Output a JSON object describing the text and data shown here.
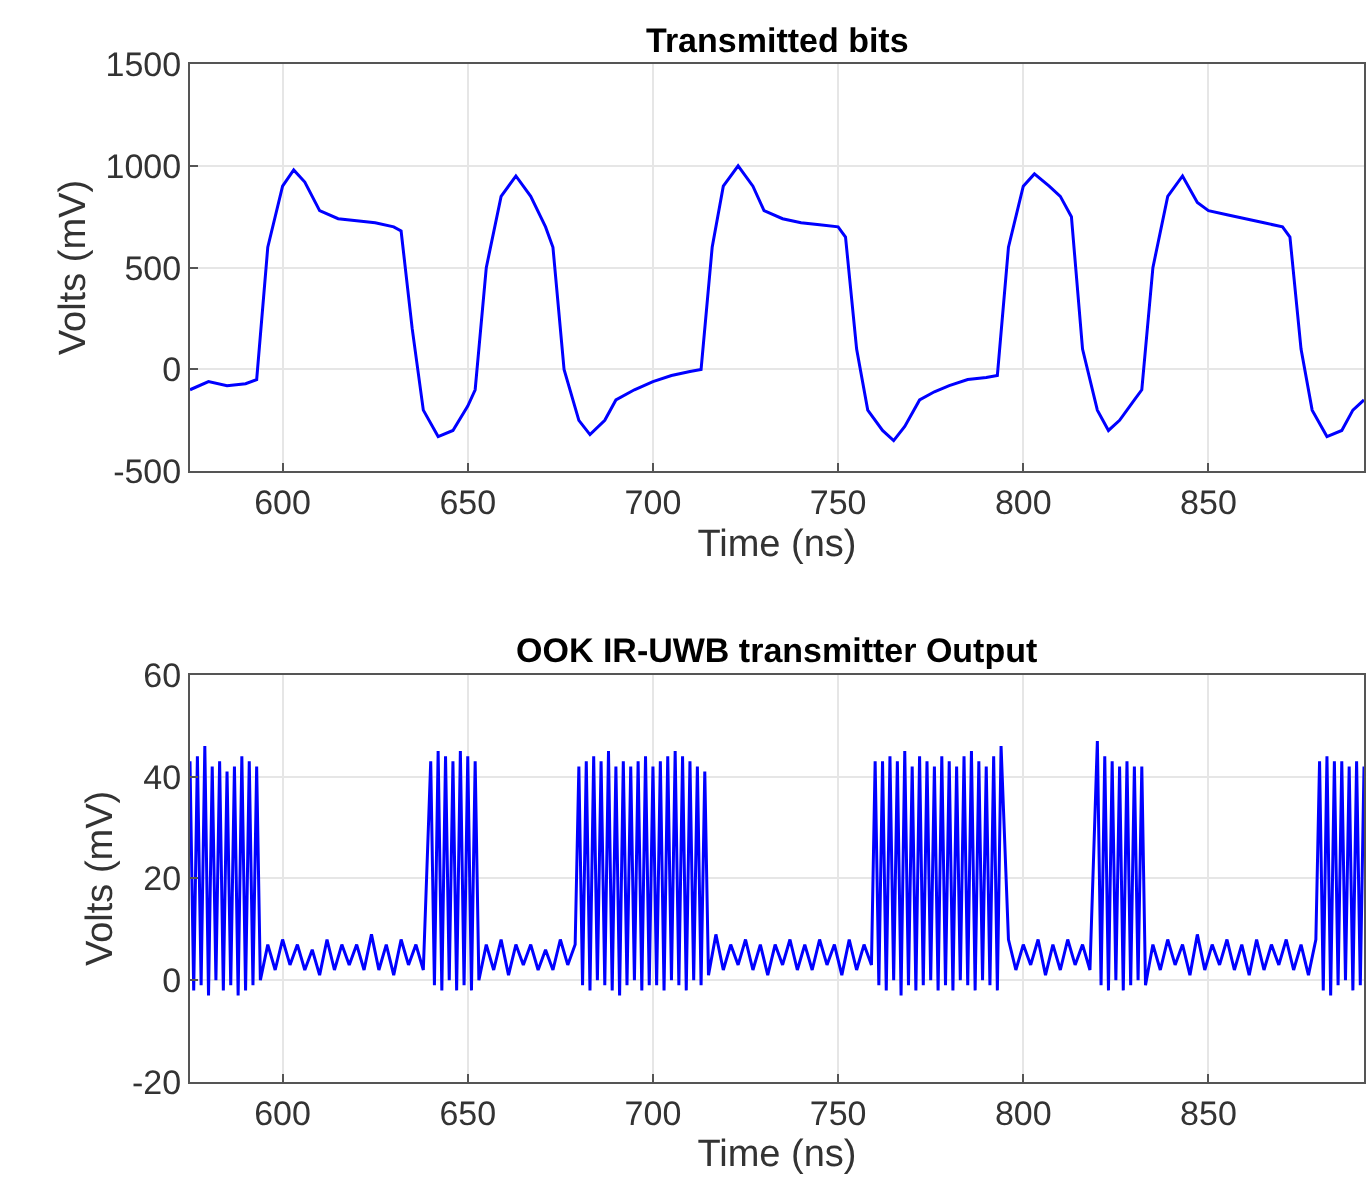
{
  "chart_data": [
    {
      "type": "line",
      "title": "Transmitted bits",
      "xlabel": "Time (ns)",
      "ylabel": "Volts (mV)",
      "xlim": [
        575,
        892
      ],
      "ylim": [
        -500,
        1500
      ],
      "xticks": [
        600,
        650,
        700,
        750,
        800,
        850
      ],
      "yticks": [
        -500,
        0,
        500,
        1000,
        1500
      ],
      "grid": true,
      "series": [
        {
          "color": "#0000ff",
          "x": [
            575,
            580,
            585,
            590,
            593,
            596,
            600,
            603,
            606,
            610,
            615,
            620,
            625,
            630,
            632,
            635,
            638,
            642,
            646,
            650,
            652,
            655,
            659,
            663,
            667,
            671,
            673,
            676,
            680,
            683,
            687,
            690,
            695,
            700,
            705,
            710,
            713,
            716,
            719,
            723,
            727,
            730,
            735,
            740,
            745,
            750,
            752,
            755,
            758,
            762,
            765,
            768,
            772,
            776,
            780,
            785,
            790,
            793,
            796,
            800,
            803,
            807,
            810,
            813,
            816,
            820,
            823,
            826,
            830,
            832,
            835,
            839,
            843,
            847,
            850,
            855,
            860,
            865,
            870,
            872,
            875,
            878,
            882,
            886,
            889,
            892
          ],
          "values": [
            -100,
            -60,
            -80,
            -70,
            -50,
            600,
            900,
            980,
            920,
            780,
            740,
            730,
            720,
            700,
            680,
            200,
            -200,
            -330,
            -300,
            -180,
            -100,
            500,
            850,
            950,
            850,
            700,
            600,
            0,
            -250,
            -320,
            -250,
            -150,
            -100,
            -60,
            -30,
            -10,
            0,
            600,
            900,
            1000,
            900,
            780,
            740,
            720,
            710,
            700,
            650,
            100,
            -200,
            -300,
            -350,
            -280,
            -150,
            -110,
            -80,
            -50,
            -40,
            -30,
            600,
            900,
            960,
            900,
            850,
            750,
            100,
            -200,
            -300,
            -250,
            -150,
            -100,
            500,
            850,
            950,
            820,
            780,
            760,
            740,
            720,
            700,
            650,
            100,
            -200,
            -330,
            -300,
            -200,
            -150
          ]
        }
      ]
    },
    {
      "type": "line",
      "title": "OOK IR-UWB transmitter Output",
      "xlabel": "Time (ns)",
      "ylabel": "Volts (mV)",
      "xlim": [
        575,
        892
      ],
      "ylim": [
        -20,
        60
      ],
      "xticks": [
        600,
        650,
        700,
        750,
        800,
        850
      ],
      "yticks": [
        -20,
        0,
        20,
        40,
        60
      ],
      "grid": true,
      "series": [
        {
          "color": "#0000ff",
          "x": [
            575,
            576,
            577,
            578,
            579,
            580,
            581,
            582,
            583,
            584,
            585,
            586,
            587,
            588,
            589,
            590,
            591,
            592,
            593,
            594,
            596,
            598,
            600,
            602,
            604,
            606,
            608,
            610,
            612,
            614,
            616,
            618,
            620,
            622,
            624,
            626,
            628,
            630,
            632,
            634,
            636,
            638,
            640,
            641,
            642,
            643,
            644,
            645,
            646,
            647,
            648,
            649,
            650,
            651,
            652,
            653,
            655,
            657,
            659,
            661,
            663,
            665,
            667,
            669,
            671,
            673,
            675,
            677,
            679,
            680,
            681,
            682,
            683,
            684,
            685,
            686,
            687,
            688,
            689,
            690,
            691,
            692,
            693,
            694,
            695,
            696,
            697,
            698,
            699,
            700,
            701,
            702,
            703,
            704,
            705,
            706,
            707,
            708,
            709,
            710,
            711,
            712,
            713,
            714,
            715,
            717,
            719,
            721,
            723,
            725,
            727,
            729,
            731,
            733,
            735,
            737,
            739,
            741,
            743,
            745,
            747,
            749,
            751,
            753,
            755,
            757,
            759,
            760,
            761,
            762,
            763,
            764,
            765,
            766,
            767,
            768,
            769,
            770,
            771,
            772,
            773,
            774,
            775,
            776,
            777,
            778,
            779,
            780,
            781,
            782,
            783,
            784,
            785,
            786,
            787,
            788,
            789,
            790,
            791,
            792,
            793,
            794,
            796,
            798,
            800,
            802,
            804,
            806,
            808,
            810,
            812,
            814,
            816,
            818,
            820,
            821,
            822,
            823,
            824,
            825,
            826,
            827,
            828,
            829,
            830,
            831,
            832,
            833,
            835,
            837,
            839,
            841,
            843,
            845,
            847,
            849,
            851,
            853,
            855,
            857,
            859,
            861,
            863,
            865,
            867,
            869,
            871,
            873,
            875,
            877,
            879,
            880,
            881,
            882,
            883,
            884,
            885,
            886,
            887,
            888,
            889,
            890,
            891,
            892
          ],
          "values": [
            43,
            -2,
            44,
            -1,
            46,
            -3,
            42,
            0,
            43,
            -2,
            41,
            -1,
            42,
            -3,
            44,
            -2,
            43,
            -1,
            42,
            0,
            7,
            2,
            8,
            3,
            7,
            2,
            6,
            1,
            8,
            2,
            7,
            3,
            7,
            2,
            9,
            2,
            7,
            1,
            8,
            3,
            7,
            2,
            43,
            -1,
            45,
            -2,
            44,
            0,
            43,
            -2,
            45,
            -1,
            44,
            -2,
            43,
            0,
            7,
            2,
            8,
            1,
            7,
            3,
            7,
            2,
            6,
            2,
            8,
            3,
            7,
            42,
            -1,
            43,
            -2,
            44,
            0,
            43,
            -1,
            45,
            -2,
            42,
            -3,
            43,
            -1,
            42,
            0,
            43,
            -2,
            44,
            -1,
            42,
            -1,
            43,
            -2,
            44,
            0,
            45,
            -1,
            44,
            -2,
            43,
            0,
            42,
            -1,
            41,
            1,
            9,
            2,
            7,
            3,
            8,
            2,
            7,
            1,
            7,
            3,
            8,
            2,
            7,
            2,
            8,
            3,
            7,
            1,
            8,
            2,
            7,
            3,
            43,
            -1,
            43,
            -2,
            44,
            0,
            43,
            -3,
            45,
            -1,
            42,
            -2,
            44,
            -1,
            43,
            0,
            42,
            -2,
            44,
            -1,
            43,
            -2,
            42,
            0,
            44,
            -1,
            45,
            -2,
            43,
            0,
            42,
            -1,
            44,
            -2,
            46,
            8,
            2,
            7,
            3,
            8,
            1,
            7,
            2,
            8,
            3,
            7,
            2,
            47,
            -1,
            44,
            -2,
            43,
            0,
            42,
            -2,
            43,
            -1,
            42,
            0,
            42,
            -1,
            7,
            2,
            8,
            3,
            7,
            1,
            9,
            2,
            7,
            3,
            8,
            2,
            7,
            1,
            8,
            2,
            7,
            3,
            8,
            2,
            7,
            1,
            8,
            43,
            -2,
            44,
            -3,
            43,
            -1,
            43,
            0,
            42,
            -2,
            43,
            -1,
            42
          ]
        }
      ]
    }
  ]
}
